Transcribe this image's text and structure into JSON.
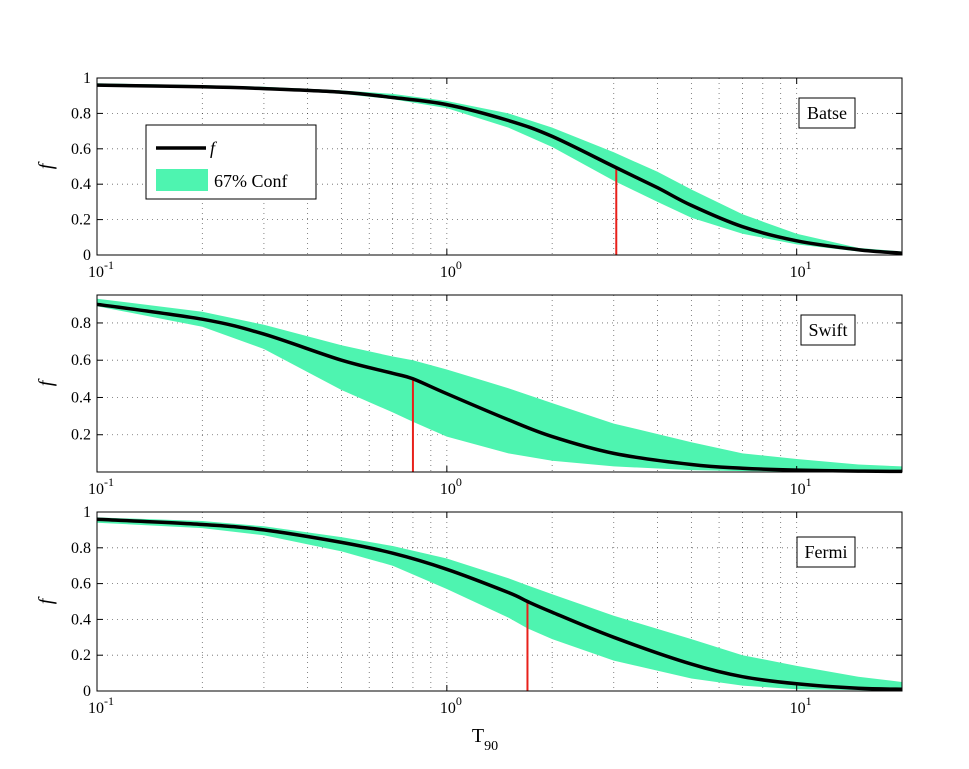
{
  "figure": {
    "xlabel": "T",
    "xlabel_sub": "90",
    "colors": {
      "band": "#4EF4B0",
      "curve": "#000000",
      "marker": "#E8201A"
    }
  },
  "legend": {
    "items": [
      {
        "label": "f",
        "kind": "line"
      },
      {
        "label": "67% Conf",
        "kind": "patch"
      }
    ]
  },
  "chart_data": [
    {
      "type": "area",
      "title": "Batse",
      "ylabel": "f",
      "xscale": "log",
      "xlim": [
        0.1,
        20
      ],
      "ylim": [
        0,
        1
      ],
      "yticks": [
        0,
        0.2,
        0.4,
        0.6,
        0.8,
        1
      ],
      "ytick_labels": [
        "0",
        "0.2",
        "0.4",
        "0.6",
        "0.8",
        "1"
      ],
      "xticks": [
        0.1,
        1,
        10
      ],
      "xtick_labels": [
        "10",
        "10",
        "10"
      ],
      "xtick_exponents": [
        "-1",
        "0",
        "1"
      ],
      "grid": true,
      "legend_position": "upper-left",
      "x": [
        0.1,
        0.2,
        0.3,
        0.5,
        0.7,
        1,
        1.5,
        2,
        3,
        4,
        5,
        7,
        10,
        15,
        20
      ],
      "series": [
        {
          "name": "f",
          "values": [
            0.96,
            0.95,
            0.94,
            0.92,
            0.89,
            0.85,
            0.76,
            0.67,
            0.5,
            0.38,
            0.28,
            0.16,
            0.08,
            0.03,
            0.01
          ]
        },
        {
          "name": "67% Conf",
          "lower": [
            0.96,
            0.95,
            0.94,
            0.91,
            0.88,
            0.83,
            0.72,
            0.61,
            0.42,
            0.3,
            0.21,
            0.12,
            0.06,
            0.02,
            0.01
          ],
          "upper": [
            0.97,
            0.96,
            0.95,
            0.93,
            0.91,
            0.87,
            0.8,
            0.72,
            0.58,
            0.47,
            0.37,
            0.23,
            0.12,
            0.04,
            0.02
          ]
        }
      ],
      "marker_x": 3.05,
      "marker_y": 0.5
    },
    {
      "type": "area",
      "title": "Swift",
      "ylabel": "f",
      "xscale": "log",
      "xlim": [
        0.1,
        20
      ],
      "ylim": [
        0,
        0.95
      ],
      "yticks": [
        0.2,
        0.4,
        0.6,
        0.8
      ],
      "ytick_labels": [
        "0.2",
        "0.4",
        "0.6",
        "0.8"
      ],
      "xticks": [
        0.1,
        1,
        10
      ],
      "xtick_labels": [
        "10",
        "10",
        "10"
      ],
      "xtick_exponents": [
        "-1",
        "0",
        "1"
      ],
      "grid": true,
      "x": [
        0.1,
        0.2,
        0.3,
        0.5,
        0.7,
        0.8,
        1,
        1.5,
        2,
        3,
        5,
        7,
        10,
        15,
        20
      ],
      "series": [
        {
          "name": "f",
          "values": [
            0.9,
            0.82,
            0.74,
            0.6,
            0.53,
            0.5,
            0.42,
            0.28,
            0.19,
            0.1,
            0.04,
            0.02,
            0.01,
            0.005,
            0.003
          ]
        },
        {
          "name": "67% Conf",
          "lower": [
            0.89,
            0.78,
            0.66,
            0.44,
            0.32,
            0.27,
            0.19,
            0.1,
            0.06,
            0.03,
            0.01,
            0.005,
            0.002,
            0.001,
            0.001
          ],
          "upper": [
            0.93,
            0.86,
            0.79,
            0.68,
            0.62,
            0.6,
            0.55,
            0.45,
            0.37,
            0.26,
            0.16,
            0.1,
            0.07,
            0.04,
            0.03
          ]
        }
      ],
      "marker_x": 0.8,
      "marker_y": 0.5
    },
    {
      "type": "area",
      "title": "Fermi",
      "ylabel": "f",
      "xscale": "log",
      "xlim": [
        0.1,
        20
      ],
      "ylim": [
        0,
        1
      ],
      "yticks": [
        0,
        0.2,
        0.4,
        0.6,
        0.8,
        1
      ],
      "ytick_labels": [
        "0",
        "0.2",
        "0.4",
        "0.6",
        "0.8",
        "1"
      ],
      "xticks": [
        0.1,
        1,
        10
      ],
      "xtick_labels": [
        "10",
        "10",
        "10"
      ],
      "xtick_exponents": [
        "-1",
        "0",
        "1"
      ],
      "grid": true,
      "x": [
        0.1,
        0.2,
        0.3,
        0.5,
        0.7,
        1,
        1.5,
        1.7,
        2,
        3,
        5,
        7,
        10,
        15,
        20
      ],
      "series": [
        {
          "name": "f",
          "values": [
            0.96,
            0.93,
            0.9,
            0.83,
            0.77,
            0.68,
            0.55,
            0.5,
            0.44,
            0.3,
            0.15,
            0.08,
            0.04,
            0.015,
            0.01
          ]
        },
        {
          "name": "67% Conf",
          "lower": [
            0.94,
            0.91,
            0.87,
            0.78,
            0.7,
            0.57,
            0.41,
            0.35,
            0.29,
            0.17,
            0.07,
            0.03,
            0.01,
            0.005,
            0.002
          ],
          "upper": [
            0.97,
            0.95,
            0.92,
            0.86,
            0.81,
            0.74,
            0.63,
            0.59,
            0.54,
            0.42,
            0.29,
            0.2,
            0.14,
            0.08,
            0.05
          ]
        }
      ],
      "marker_x": 1.7,
      "marker_y": 0.5
    }
  ]
}
